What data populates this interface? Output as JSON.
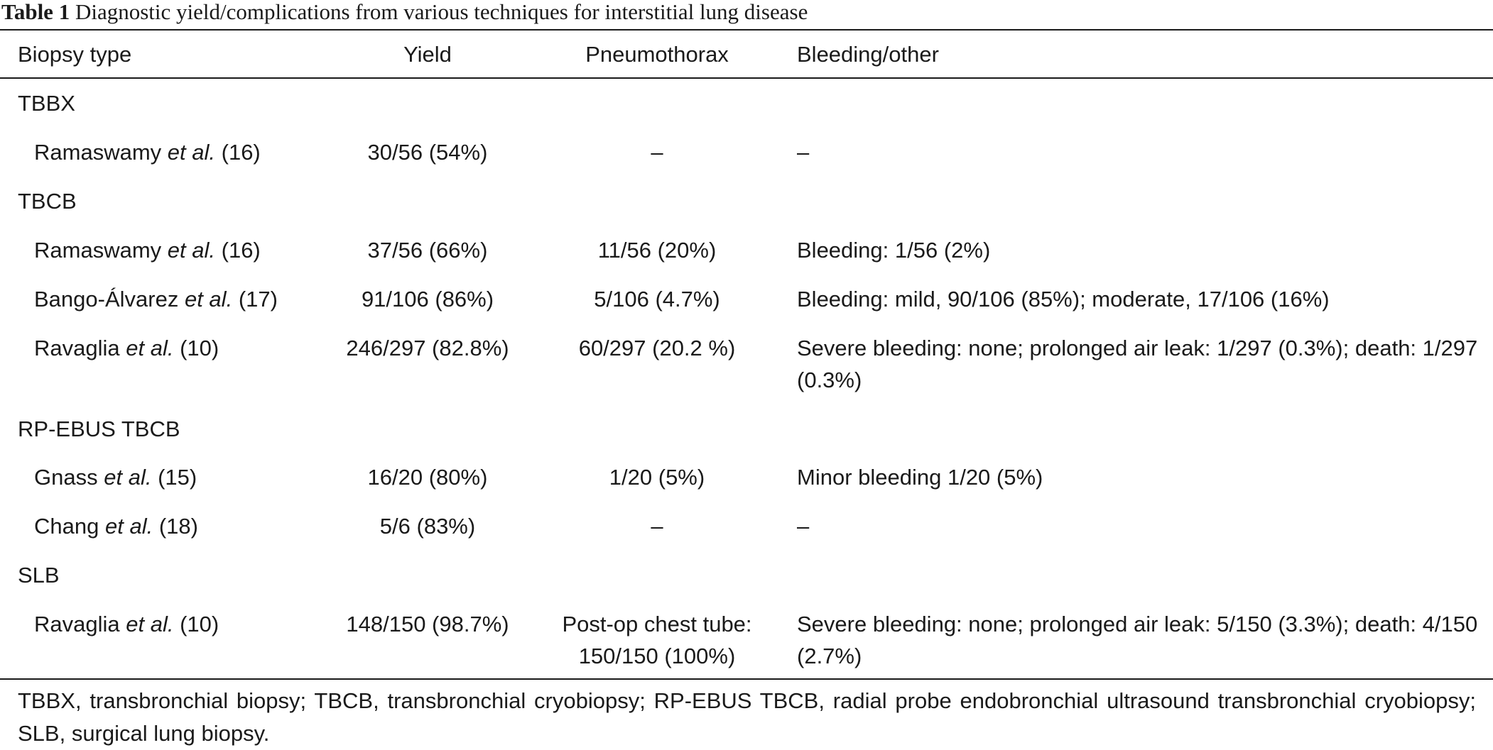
{
  "caption": {
    "label": "Table 1",
    "text": "Diagnostic yield/complications from various techniques for interstitial lung disease"
  },
  "columns": [
    "Biopsy type",
    "Yield",
    "Pneumothorax",
    "Bleeding/other"
  ],
  "groups": [
    {
      "name": "TBBX",
      "rows": [
        {
          "author": "Ramaswamy",
          "etal": "et al.",
          "ref": "(16)",
          "yield": "30/56 (54%)",
          "pneumothorax": "–",
          "bleeding": "–"
        }
      ]
    },
    {
      "name": "TBCB",
      "rows": [
        {
          "author": "Ramaswamy",
          "etal": "et al.",
          "ref": "(16)",
          "yield": "37/56 (66%)",
          "pneumothorax": "11/56 (20%)",
          "bleeding": "Bleeding: 1/56 (2%)"
        },
        {
          "author": "Bango-Álvarez",
          "etal": "et al.",
          "ref": "(17)",
          "yield": "91/106 (86%)",
          "pneumothorax": "5/106 (4.7%)",
          "bleeding": "Bleeding: mild, 90/106 (85%); moderate, 17/106 (16%)"
        },
        {
          "author": "Ravaglia",
          "etal": "et al.",
          "ref": "(10)",
          "yield": "246/297 (82.8%)",
          "pneumothorax": "60/297 (20.2 %)",
          "bleeding": "Severe bleeding: none; prolonged air leak: 1/297 (0.3%); death: 1/297 (0.3%)"
        }
      ]
    },
    {
      "name": "RP-EBUS TBCB",
      "rows": [
        {
          "author": "Gnass",
          "etal": "et al.",
          "ref": "(15)",
          "yield": "16/20 (80%)",
          "pneumothorax": "1/20 (5%)",
          "bleeding": "Minor bleeding 1/20 (5%)"
        },
        {
          "author": "Chang",
          "etal": "et al.",
          "ref": "(18)",
          "yield": "5/6 (83%)",
          "pneumothorax": "–",
          "bleeding": "–"
        }
      ]
    },
    {
      "name": "SLB",
      "rows": [
        {
          "author": "Ravaglia",
          "etal": "et al.",
          "ref": "(10)",
          "yield": "148/150 (98.7%)",
          "pneumothorax": "Post-op chest tube: 150/150 (100%)",
          "bleeding": "Severe bleeding: none; prolonged air leak: 5/150 (3.3%); death: 4/150 (2.7%)"
        }
      ]
    }
  ],
  "footnote": "TBBX, transbronchial biopsy; TBCB, transbronchial cryobiopsy; RP-EBUS TBCB, radial probe endobronchial ultrasound transbronchial cryobiopsy; SLB, surgical lung biopsy."
}
